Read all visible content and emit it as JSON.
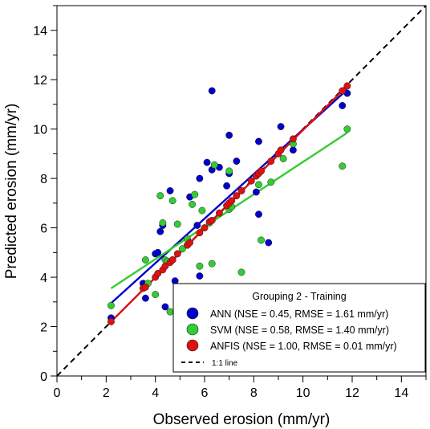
{
  "chart_data": {
    "type": "scatter",
    "title": "",
    "xlabel": "Observed erosion (mm/yr)",
    "ylabel": "Predicted erosion (mm/yr)",
    "xlim": [
      0,
      15
    ],
    "ylim": [
      0,
      15
    ],
    "x_ticks": [
      0,
      2,
      4,
      6,
      8,
      10,
      12,
      14
    ],
    "y_ticks": [
      0,
      2,
      4,
      6,
      8,
      10,
      12,
      14
    ],
    "minor_tick_step": 1,
    "grid": false,
    "legend": {
      "title": "Grouping 2 - Training",
      "placement": "bottom-right",
      "reference_line_label": "1:1 line"
    },
    "reference_line": {
      "type": "1:1",
      "color": "#000000",
      "style": "dashed"
    },
    "series": [
      {
        "name": "ANN (NSE = 0.45, RMSE = 1.61 mm/yr)",
        "color": "#0000cc",
        "fit_line": [
          [
            2.2,
            2.95
          ],
          [
            11.8,
            11.6
          ]
        ],
        "points": [
          [
            2.2,
            2.35
          ],
          [
            3.5,
            3.75
          ],
          [
            3.6,
            3.15
          ],
          [
            4.0,
            4.95
          ],
          [
            4.1,
            5.0
          ],
          [
            4.2,
            5.85
          ],
          [
            4.3,
            6.1
          ],
          [
            4.4,
            2.8
          ],
          [
            4.6,
            7.5
          ],
          [
            4.7,
            4.7
          ],
          [
            4.8,
            3.85
          ],
          [
            5.3,
            5.3
          ],
          [
            5.4,
            7.25
          ],
          [
            5.7,
            6.1
          ],
          [
            5.8,
            8.0
          ],
          [
            5.8,
            4.05
          ],
          [
            6.1,
            8.65
          ],
          [
            6.3,
            8.35
          ],
          [
            6.3,
            11.55
          ],
          [
            6.6,
            8.45
          ],
          [
            6.9,
            7.7
          ],
          [
            7.0,
            9.75
          ],
          [
            7.0,
            8.2
          ],
          [
            7.3,
            8.7
          ],
          [
            8.1,
            7.45
          ],
          [
            8.2,
            9.5
          ],
          [
            8.2,
            6.55
          ],
          [
            8.6,
            5.4
          ],
          [
            9.1,
            10.1
          ],
          [
            9.6,
            9.15
          ],
          [
            11.6,
            10.95
          ],
          [
            11.8,
            11.45
          ]
        ]
      },
      {
        "name": "SVM (NSE = 0.58, RMSE = 1.40 mm/yr)",
        "color": "#33cc33",
        "fit_line": [
          [
            2.2,
            3.55
          ],
          [
            11.8,
            9.85
          ]
        ],
        "points": [
          [
            2.2,
            2.85
          ],
          [
            3.6,
            4.7
          ],
          [
            3.7,
            3.75
          ],
          [
            4.0,
            3.3
          ],
          [
            4.2,
            7.3
          ],
          [
            4.3,
            6.2
          ],
          [
            4.4,
            4.7
          ],
          [
            4.5,
            4.65
          ],
          [
            4.6,
            2.6
          ],
          [
            4.7,
            7.1
          ],
          [
            4.9,
            6.15
          ],
          [
            5.1,
            5.15
          ],
          [
            5.3,
            5.55
          ],
          [
            5.5,
            6.95
          ],
          [
            5.6,
            7.35
          ],
          [
            5.8,
            4.45
          ],
          [
            5.9,
            6.7
          ],
          [
            6.2,
            6.2
          ],
          [
            6.3,
            4.55
          ],
          [
            6.4,
            8.55
          ],
          [
            7.0,
            6.75
          ],
          [
            7.0,
            8.3
          ],
          [
            7.1,
            6.85
          ],
          [
            7.5,
            4.2
          ],
          [
            8.2,
            7.75
          ],
          [
            8.3,
            5.5
          ],
          [
            8.7,
            7.85
          ],
          [
            9.2,
            8.8
          ],
          [
            9.6,
            9.4
          ],
          [
            11.6,
            8.5
          ],
          [
            11.8,
            10.0
          ]
        ]
      },
      {
        "name": "ANFIS (NSE = 1.00, RMSE = 0.01 mm/yr)",
        "color": "#e01010",
        "fit_line": [
          [
            2.2,
            2.2
          ],
          [
            11.8,
            11.75
          ]
        ],
        "points": [
          [
            2.2,
            2.2
          ],
          [
            3.5,
            3.55
          ],
          [
            3.6,
            3.6
          ],
          [
            4.0,
            4.0
          ],
          [
            4.1,
            4.15
          ],
          [
            4.3,
            4.3
          ],
          [
            4.4,
            4.45
          ],
          [
            4.6,
            4.6
          ],
          [
            4.7,
            4.7
          ],
          [
            4.9,
            4.95
          ],
          [
            5.3,
            5.3
          ],
          [
            5.4,
            5.4
          ],
          [
            5.8,
            5.8
          ],
          [
            6.0,
            6.0
          ],
          [
            6.2,
            6.25
          ],
          [
            6.3,
            6.3
          ],
          [
            6.6,
            6.6
          ],
          [
            6.9,
            6.9
          ],
          [
            7.0,
            7.0
          ],
          [
            7.1,
            7.1
          ],
          [
            7.3,
            7.3
          ],
          [
            7.5,
            7.5
          ],
          [
            7.9,
            7.9
          ],
          [
            8.1,
            8.1
          ],
          [
            8.2,
            8.2
          ],
          [
            8.3,
            8.3
          ],
          [
            8.7,
            8.7
          ],
          [
            9.0,
            9.0
          ],
          [
            9.1,
            9.15
          ],
          [
            9.6,
            9.6
          ],
          [
            11.6,
            11.55
          ],
          [
            11.8,
            11.75
          ]
        ]
      }
    ]
  }
}
